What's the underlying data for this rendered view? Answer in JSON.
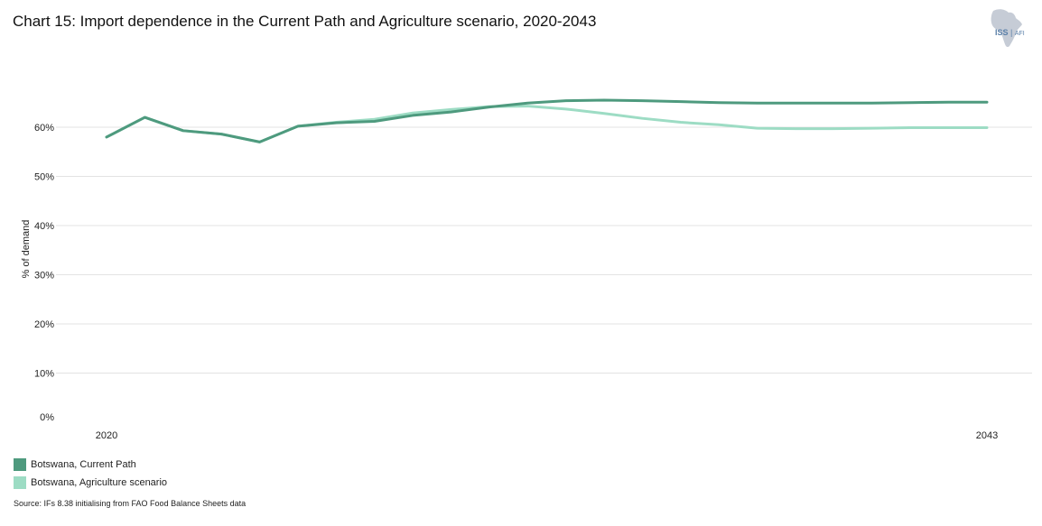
{
  "header": {
    "title": "Chart 15: Import dependence in the Current Path and Agriculture scenario, 2020-2043",
    "logo_main": "ISS",
    "logo_sub": "AFI"
  },
  "source": "Source: IFs 8.38 initialising from FAO Food Balance Sheets data",
  "chart_data": {
    "type": "line",
    "title": "Chart 15: Import dependence in the Current Path and Agriculture scenario, 2020-2043",
    "xlabel": "",
    "ylabel": "% of demand",
    "x": [
      2020,
      2021,
      2022,
      2023,
      2024,
      2025,
      2026,
      2027,
      2028,
      2029,
      2030,
      2031,
      2032,
      2033,
      2034,
      2035,
      2036,
      2037,
      2038,
      2039,
      2040,
      2041,
      2042,
      2043
    ],
    "x_tick_labels": [
      "2020",
      "2043"
    ],
    "ylim": [
      0,
      70
    ],
    "y_ticks": [
      0,
      10,
      20,
      30,
      40,
      50,
      60
    ],
    "y_tick_labels": [
      "0%",
      "10%",
      "20%",
      "30%",
      "40%",
      "50%",
      "60%"
    ],
    "grid": true,
    "legend_position": "bottom-left",
    "series": [
      {
        "name": "Botswana, Current Path",
        "color": "#4e9a7e",
        "values": [
          58.0,
          62.0,
          59.3,
          58.6,
          57.0,
          60.2,
          60.9,
          61.2,
          62.4,
          63.1,
          64.1,
          64.9,
          65.4,
          65.5,
          65.4,
          65.2,
          65.0,
          64.9,
          64.9,
          64.9,
          64.9,
          65.0,
          65.1,
          65.1
        ]
      },
      {
        "name": "Botswana, Agriculture scenario",
        "color": "#9ddcc4",
        "values": [
          58.0,
          62.0,
          59.3,
          58.6,
          57.0,
          60.2,
          61.0,
          61.6,
          62.9,
          63.6,
          64.2,
          64.3,
          63.7,
          62.8,
          61.8,
          61.0,
          60.5,
          59.8,
          59.7,
          59.7,
          59.8,
          59.9,
          59.9,
          59.9
        ]
      }
    ]
  }
}
